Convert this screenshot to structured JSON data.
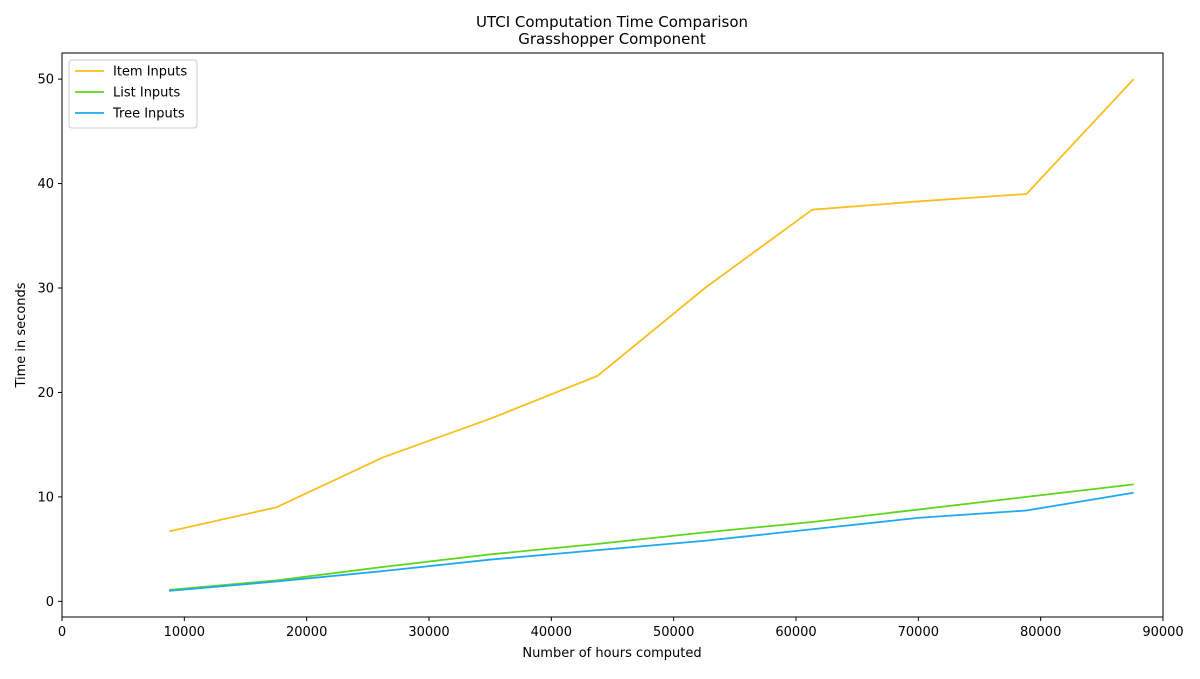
{
  "chart_data": {
    "type": "line",
    "title": "UTCI Computation Time Comparison",
    "subtitle": "Grasshopper Component",
    "xlabel": "Number of hours computed",
    "ylabel": "Time in seconds",
    "xlim": [
      0,
      90000
    ],
    "ylim": [
      -1.5,
      52.5
    ],
    "xticks": [
      0,
      10000,
      20000,
      30000,
      40000,
      50000,
      60000,
      70000,
      80000,
      90000
    ],
    "xtick_labels": [
      "0",
      "10000",
      "20000",
      "30000",
      "40000",
      "50000",
      "60000",
      "70000",
      "80000",
      "90000"
    ],
    "yticks": [
      0,
      10,
      20,
      30,
      40,
      50
    ],
    "ytick_labels": [
      "0",
      "10",
      "20",
      "30",
      "40",
      "50"
    ],
    "grid": false,
    "legend_position": "top-left",
    "x": [
      8760,
      17520,
      26280,
      35040,
      43800,
      52560,
      61320,
      70080,
      78840,
      87600
    ],
    "series": [
      {
        "name": "Item Inputs",
        "color": "#f9bf1e",
        "values": [
          6.7,
          9.0,
          13.8,
          17.5,
          21.6,
          30.0,
          37.5,
          38.3,
          39.0,
          50.0
        ]
      },
      {
        "name": "List Inputs",
        "color": "#5fd61e",
        "values": [
          1.1,
          2.0,
          3.3,
          4.5,
          5.5,
          6.6,
          7.6,
          8.8,
          10.0,
          11.2
        ]
      },
      {
        "name": "Tree Inputs",
        "color": "#1ea9f0",
        "values": [
          1.0,
          1.9,
          2.9,
          4.0,
          4.9,
          5.8,
          6.9,
          8.0,
          8.7,
          10.4
        ]
      }
    ]
  }
}
